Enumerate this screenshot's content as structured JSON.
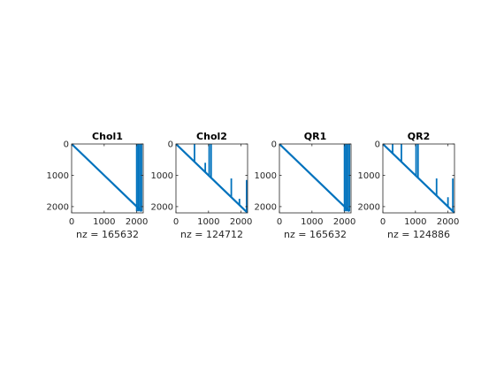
{
  "figure": {
    "background": "#ffffff"
  },
  "chart_data": [
    {
      "type": "scatter",
      "title": "Chol1",
      "xlabel": "nz = 165632",
      "ylabel": "",
      "xlim": [
        0,
        2200
      ],
      "ylim": [
        0,
        2200
      ],
      "y_reversed": true,
      "x_ticks": [
        "0",
        "1000",
        "2000"
      ],
      "y_ticks": [
        "0",
        "1000",
        "2000"
      ],
      "grid": false,
      "color": "#0072BD",
      "segments": [
        {
          "x": [
            0,
            2150
          ],
          "y": [
            0,
            2150
          ]
        },
        {
          "x": [
            2000,
            2000
          ],
          "y": [
            0,
            2150
          ]
        },
        {
          "x": [
            2050,
            2050
          ],
          "y": [
            0,
            2150
          ]
        },
        {
          "x": [
            2100,
            2100
          ],
          "y": [
            0,
            2150
          ]
        },
        {
          "x": [
            2150,
            2150
          ],
          "y": [
            0,
            2150
          ]
        }
      ]
    },
    {
      "type": "scatter",
      "title": "Chol2",
      "xlabel": "nz = 124712",
      "ylabel": "",
      "xlim": [
        0,
        2200
      ],
      "ylim": [
        0,
        2200
      ],
      "y_reversed": true,
      "x_ticks": [
        "0",
        "1000",
        "2000"
      ],
      "y_ticks": [
        "0",
        "1000",
        "2000"
      ],
      "grid": false,
      "color": "#0072BD",
      "segments": [
        {
          "x": [
            0,
            2200
          ],
          "y": [
            0,
            2200
          ]
        },
        {
          "x": [
            570,
            570
          ],
          "y": [
            0,
            570
          ]
        },
        {
          "x": [
            900,
            900
          ],
          "y": [
            600,
            900
          ]
        },
        {
          "x": [
            1020,
            1020
          ],
          "y": [
            0,
            1020
          ]
        },
        {
          "x": [
            1080,
            1080
          ],
          "y": [
            0,
            1080
          ]
        },
        {
          "x": [
            1700,
            1700
          ],
          "y": [
            1100,
            1700
          ]
        },
        {
          "x": [
            1950,
            1950
          ],
          "y": [
            1750,
            1950
          ]
        },
        {
          "x": [
            2170,
            2170
          ],
          "y": [
            1150,
            2170
          ]
        }
      ]
    },
    {
      "type": "scatter",
      "title": "QR1",
      "xlabel": "nz = 165632",
      "ylabel": "",
      "xlim": [
        0,
        2200
      ],
      "ylim": [
        0,
        2200
      ],
      "y_reversed": true,
      "x_ticks": [
        "0",
        "1000",
        "2000"
      ],
      "y_ticks": [
        "0",
        "1000",
        "2000"
      ],
      "grid": false,
      "color": "#0072BD",
      "segments": [
        {
          "x": [
            0,
            2150
          ],
          "y": [
            0,
            2150
          ]
        },
        {
          "x": [
            2000,
            2000
          ],
          "y": [
            0,
            2150
          ]
        },
        {
          "x": [
            2050,
            2050
          ],
          "y": [
            0,
            2150
          ]
        },
        {
          "x": [
            2100,
            2100
          ],
          "y": [
            0,
            2150
          ]
        },
        {
          "x": [
            2150,
            2150
          ],
          "y": [
            0,
            2150
          ]
        }
      ]
    },
    {
      "type": "scatter",
      "title": "QR2",
      "xlabel": "nz = 124886",
      "ylabel": "",
      "xlim": [
        0,
        2200
      ],
      "ylim": [
        0,
        2200
      ],
      "y_reversed": true,
      "x_ticks": [
        "0",
        "1000",
        "2000"
      ],
      "y_ticks": [
        "0",
        "1000",
        "2000"
      ],
      "grid": false,
      "color": "#0072BD",
      "segments": [
        {
          "x": [
            0,
            2200
          ],
          "y": [
            0,
            2200
          ]
        },
        {
          "x": [
            300,
            300
          ],
          "y": [
            0,
            300
          ]
        },
        {
          "x": [
            570,
            570
          ],
          "y": [
            0,
            570
          ]
        },
        {
          "x": [
            1020,
            1020
          ],
          "y": [
            0,
            1020
          ]
        },
        {
          "x": [
            1080,
            1080
          ],
          "y": [
            0,
            1080
          ]
        },
        {
          "x": [
            1650,
            1650
          ],
          "y": [
            1100,
            1650
          ]
        },
        {
          "x": [
            2000,
            2000
          ],
          "y": [
            1700,
            2000
          ]
        },
        {
          "x": [
            2150,
            2150
          ],
          "y": [
            1100,
            2150
          ]
        }
      ]
    }
  ]
}
